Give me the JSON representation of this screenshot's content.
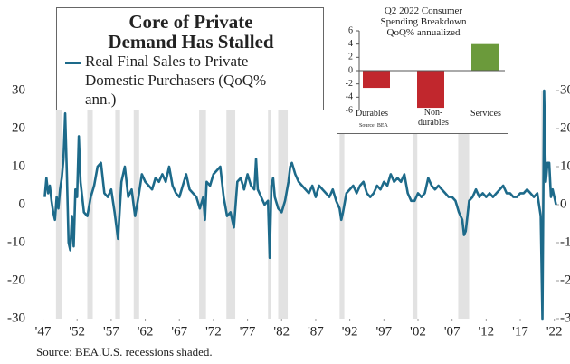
{
  "chart_data": [
    {
      "type": "line",
      "title": "Core of Private Demand Has Stalled",
      "source": "Source: BEA.U.S. recessions shaded.",
      "series": [
        {
          "name": "Real Final Sales to Private Domestic Purchasers (QoQ% ann.)",
          "color": "#1d6a8a",
          "values": [
            2,
            7,
            3,
            5,
            1,
            -2,
            -4,
            2,
            -1,
            4,
            7,
            12,
            24,
            8,
            -10,
            -12,
            -3,
            -11,
            4,
            2,
            18,
            6,
            2,
            -2,
            -3,
            2,
            5,
            10,
            11,
            3,
            2,
            4,
            -2,
            -9,
            6,
            10,
            2,
            4,
            -3,
            2,
            8,
            6,
            5,
            4,
            7,
            6,
            8,
            6,
            10,
            5,
            3,
            2,
            5,
            8,
            4,
            3,
            2,
            -1,
            2,
            -4,
            6,
            5,
            8,
            9,
            10,
            2,
            -3,
            -2,
            -6,
            6,
            7,
            4,
            8,
            5,
            4,
            12,
            4,
            2,
            0,
            1,
            -14,
            5,
            7,
            2,
            -1,
            -2,
            1,
            6,
            10,
            11,
            8,
            6,
            5,
            4,
            3,
            5,
            2,
            5,
            4,
            3,
            2,
            4,
            1,
            -1,
            -4,
            -2,
            3,
            4,
            5,
            3,
            5,
            6,
            3,
            2,
            3,
            5,
            4,
            6,
            5,
            8,
            6,
            7,
            6,
            8,
            3,
            1,
            1,
            3,
            2,
            3,
            7,
            5,
            4,
            5,
            4,
            3,
            2,
            2,
            1,
            -2,
            -4,
            -8,
            -7,
            1,
            2,
            4,
            2,
            3,
            2,
            3,
            2,
            3,
            4,
            5,
            3,
            3,
            2,
            2,
            3,
            3,
            4,
            3,
            2,
            3,
            -3,
            -30,
            30,
            6,
            11,
            11,
            2,
            4,
            2,
            0
          ]
        }
      ],
      "x": [
        1947.25,
        1947.5,
        1947.75,
        1948,
        1948.25,
        1948.5,
        1948.75,
        1949,
        1949.25,
        1949.5,
        1949.75,
        1950,
        1950.25,
        1950.5,
        1950.75,
        1951,
        1951.25,
        1951.5,
        1951.75,
        1952,
        1952.25,
        1952.5,
        1952.75,
        1953,
        1953.5,
        1954,
        1954.5,
        1955,
        1955.5,
        1956,
        1956.5,
        1957,
        1957.5,
        1958,
        1958.5,
        1959,
        1959.5,
        1960,
        1960.5,
        1961,
        1961.5,
        1962,
        1962.5,
        1963,
        1963.5,
        1964,
        1964.5,
        1965,
        1965.5,
        1966,
        1966.5,
        1967,
        1967.5,
        1968,
        1968.5,
        1969,
        1969.5,
        1970,
        1970.5,
        1970.75,
        1971,
        1971.5,
        1972,
        1972.5,
        1973,
        1973.5,
        1974,
        1974.5,
        1975,
        1975.5,
        1976,
        1976.5,
        1977,
        1977.5,
        1978,
        1978.25,
        1978.5,
        1979,
        1979.5,
        1980,
        1980.25,
        1980.5,
        1980.75,
        1981,
        1981.5,
        1982,
        1982.5,
        1983,
        1983.25,
        1983.5,
        1984,
        1984.5,
        1985,
        1985.5,
        1986,
        1986.5,
        1987,
        1987.5,
        1988,
        1988.5,
        1989,
        1989.5,
        1990,
        1990.5,
        1990.75,
        1991,
        1991.5,
        1992,
        1992.5,
        1993,
        1993.5,
        1994,
        1994.5,
        1995,
        1995.5,
        1996,
        1996.5,
        1997,
        1997.5,
        1998,
        1998.5,
        1999,
        1999.5,
        2000,
        2000.5,
        2001,
        2001.5,
        2002,
        2002.5,
        2003,
        2003.5,
        2004,
        2004.5,
        2005,
        2005.5,
        2006,
        2006.5,
        2007,
        2007.5,
        2008,
        2008.5,
        2008.75,
        2009,
        2009.5,
        2010,
        2010.5,
        2011,
        2011.5,
        2012,
        2012.5,
        2013,
        2013.5,
        2014,
        2014.5,
        2015,
        2015.5,
        2016,
        2016.5,
        2017,
        2017.5,
        2018,
        2018.5,
        2019,
        2019.5,
        2020,
        2020.25,
        2020.5,
        2020.75,
        2021,
        2021.25,
        2021.5,
        2021.75,
        2022,
        2022.25
      ],
      "xlim": [
        1946,
        2023.5
      ],
      "xticks": [
        {
          "value": 1947,
          "label": "'47"
        },
        {
          "value": 1952,
          "label": "'52"
        },
        {
          "value": 1957,
          "label": "'57"
        },
        {
          "value": 1962,
          "label": "'62"
        },
        {
          "value": 1967,
          "label": "'67"
        },
        {
          "value": 1972,
          "label": "'72"
        },
        {
          "value": 1977,
          "label": "'77"
        },
        {
          "value": 1982,
          "label": "'82"
        },
        {
          "value": 1987,
          "label": "'87"
        },
        {
          "value": 1992,
          "label": "'92"
        },
        {
          "value": 1997,
          "label": "'97"
        },
        {
          "value": 2002,
          "label": "'02"
        },
        {
          "value": 2007,
          "label": "'07"
        },
        {
          "value": 2012,
          "label": "'12"
        },
        {
          "value": 2017,
          "label": "'17"
        },
        {
          "value": 2022,
          "label": "'22"
        }
      ],
      "ylim": [
        -30,
        30
      ],
      "yticks": [
        -30,
        -20,
        -10,
        0,
        10,
        20,
        30
      ],
      "recessions": [
        [
          1948.9,
          1949.8
        ],
        [
          1953.5,
          1954.3
        ],
        [
          1957.6,
          1958.3
        ],
        [
          1960.3,
          1961.1
        ],
        [
          1969.9,
          1970.9
        ],
        [
          1973.9,
          1975.2
        ],
        [
          1980.0,
          1980.5
        ],
        [
          1981.5,
          1982.9
        ],
        [
          1990.5,
          1991.2
        ],
        [
          2001.2,
          2001.9
        ],
        [
          2007.9,
          2009.5
        ],
        [
          2020.1,
          2020.3
        ]
      ],
      "recession_color": "#e2e2e2"
    },
    {
      "type": "bar",
      "title": "Q2 2022 Consumer Spending Breakdown QoQ% annualized",
      "source": "Source: BEA",
      "categories": [
        "Durables",
        "Non-durables",
        "Services"
      ],
      "values": [
        -2.6,
        -5.6,
        4.0
      ],
      "colors": [
        "#c1272d",
        "#c1272d",
        "#6b9a3b"
      ],
      "ylim": [
        -6,
        6
      ],
      "yticks": [
        -6,
        -4,
        -2,
        0,
        2,
        4,
        6
      ]
    }
  ]
}
